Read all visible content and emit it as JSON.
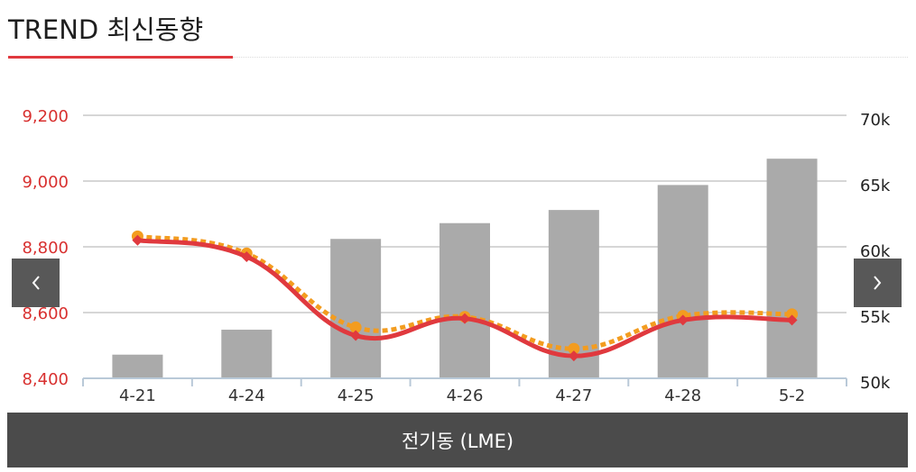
{
  "header": {
    "title": "TREND 최신동향"
  },
  "footer": {
    "label": "전기동 (LME)"
  },
  "nav": {
    "prev_icon": "chevron-left-icon",
    "next_icon": "chevron-right-icon"
  },
  "chart_data": {
    "type": "bar+line",
    "categories": [
      "4-21",
      "4-24",
      "4-25",
      "4-26",
      "4-27",
      "4-28",
      "5-2"
    ],
    "left_axis": {
      "ticks": [
        "8,400",
        "8,600",
        "8,800",
        "9,000",
        "9,200"
      ],
      "range": [
        8400,
        9200
      ],
      "color": "#d8302f"
    },
    "right_axis": {
      "ticks": [
        "50k",
        "55k",
        "60k",
        "65k",
        "70k"
      ],
      "range": [
        50000,
        70000
      ],
      "color": "#222222"
    },
    "series": [
      {
        "kind": "bar",
        "axis": "right",
        "color": "#aaaaaa",
        "values": [
          51800,
          53700,
          60600,
          61800,
          62800,
          64700,
          66700
        ]
      },
      {
        "kind": "line",
        "style": "solid",
        "axis": "left",
        "color": "#e0393e",
        "marker": "diamond",
        "values": [
          8820,
          8770,
          8530,
          8582,
          8468,
          8577,
          8577
        ]
      },
      {
        "kind": "line",
        "style": "dotted",
        "axis": "left",
        "color": "#f39c1f",
        "marker": "circle",
        "values": [
          8832,
          8780,
          8555,
          8587,
          8490,
          8590,
          8595
        ]
      }
    ],
    "grid": true
  }
}
